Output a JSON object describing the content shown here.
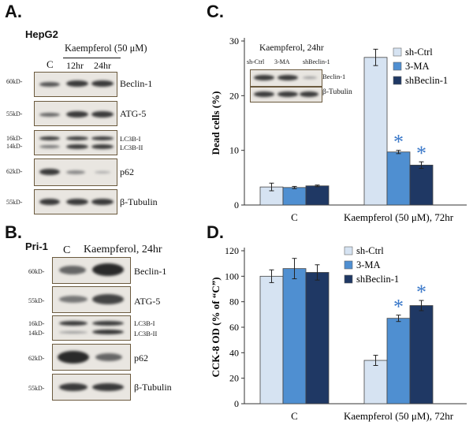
{
  "panel_a": {
    "letter": "A.",
    "cell_line": "HepG2",
    "treatment": "Kaempferol (50 μM)",
    "lanes": [
      "C",
      "12hr",
      "24hr"
    ],
    "blots": [
      {
        "mw": "60kD-",
        "protein": "Beclin-1"
      },
      {
        "mw": "55kD-",
        "protein": "ATG-5"
      },
      {
        "mw_top": "16kD-",
        "mw_bottom": "14kD-",
        "protein_top": "LC3B-I",
        "protein_bottom": "LC3B-II"
      },
      {
        "mw": "62kD-",
        "protein": "p62"
      },
      {
        "mw": "55kD-",
        "protein": "β-Tubulin"
      }
    ]
  },
  "panel_b": {
    "letter": "B.",
    "cell_line": "Pri-1",
    "lanes": [
      "C",
      "Kaempferol, 24hr"
    ],
    "blots": [
      {
        "mw": "60kD-",
        "protein": "Beclin-1"
      },
      {
        "mw": "55kD-",
        "protein": "ATG-5"
      },
      {
        "mw_top": "16kD-",
        "mw_bottom": "14kD-",
        "protein_top": "LC3B-I",
        "protein_bottom": "LC3B-II"
      },
      {
        "mw": "62kD-",
        "protein": "p62"
      },
      {
        "mw": "55kD-",
        "protein": "β-Tubulin"
      }
    ]
  },
  "panel_c": {
    "letter": "C.",
    "inset": {
      "title": "Kaempferol, 24hr",
      "lanes": [
        "sh-Ctrl",
        "3-MA",
        "shBeclin-1"
      ],
      "proteins": [
        "Beclin-1",
        "β-Tubulin"
      ]
    },
    "star": "*"
  },
  "panel_d": {
    "letter": "D.",
    "star": "*"
  },
  "chart_data": [
    {
      "type": "bar",
      "panel": "C",
      "title": "",
      "ylabel": "Dead cells (%)",
      "xlabel": "",
      "categories": [
        "C",
        "Kaempferol (50 μM), 72hr"
      ],
      "ylim": [
        0,
        30
      ],
      "yticks": [
        0,
        10,
        20,
        30
      ],
      "legend_position": "top-right",
      "series": [
        {
          "name": "sh-Ctrl",
          "color": "#d6e3f2",
          "values": [
            3.3,
            27.0
          ],
          "errors": [
            0.7,
            1.5
          ]
        },
        {
          "name": "3-MA",
          "color": "#4f8fd1",
          "values": [
            3.2,
            9.7
          ],
          "errors": [
            0.2,
            0.3
          ]
        },
        {
          "name": "shBeclin-1",
          "color": "#1f3864",
          "values": [
            3.5,
            7.3
          ],
          "errors": [
            0.15,
            0.6
          ]
        }
      ],
      "significant": [
        {
          "category": 1,
          "series": 1
        },
        {
          "category": 1,
          "series": 2
        }
      ]
    },
    {
      "type": "bar",
      "panel": "D",
      "title": "",
      "ylabel": "CCK-8 OD (% of “C”)",
      "xlabel": "",
      "categories": [
        "C",
        "Kaempferol (50 μM), 72hr"
      ],
      "ylim": [
        0,
        120
      ],
      "yticks": [
        0,
        20,
        40,
        60,
        80,
        100,
        120
      ],
      "legend_position": "top-right",
      "series": [
        {
          "name": "sh-Ctrl",
          "color": "#d6e3f2",
          "values": [
            100,
            34
          ],
          "errors": [
            5,
            4
          ]
        },
        {
          "name": "3-MA",
          "color": "#4f8fd1",
          "values": [
            106,
            67
          ],
          "errors": [
            8,
            2.5
          ]
        },
        {
          "name": "shBeclin-1",
          "color": "#1f3864",
          "values": [
            103,
            77
          ],
          "errors": [
            6,
            4
          ]
        }
      ],
      "significant": [
        {
          "category": 1,
          "series": 1
        },
        {
          "category": 1,
          "series": 2
        }
      ]
    }
  ]
}
